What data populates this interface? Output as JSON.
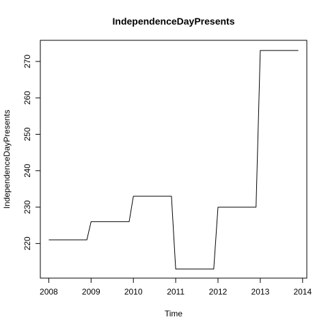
{
  "chart_data": {
    "type": "line",
    "title": "IndependenceDayPresents",
    "xlabel": "Time",
    "ylabel": "IndependenceDayPresents",
    "xlim": [
      2007.8,
      2014.1
    ],
    "ylim": [
      210.5,
      275.8
    ],
    "x_ticks": [
      2008,
      2009,
      2010,
      2011,
      2012,
      2013,
      2014
    ],
    "y_ticks": [
      220,
      230,
      240,
      250,
      260,
      270
    ],
    "grid": false,
    "legend": "none",
    "line_color": "#000000",
    "series": [
      {
        "x": [
          2008.0,
          2008.9,
          2009.0,
          2009.9,
          2010.0,
          2010.9,
          2011.0,
          2011.9,
          2012.0,
          2012.9,
          2013.0,
          2013.9
        ],
        "values": [
          221,
          221,
          226,
          226,
          233,
          233,
          213,
          213,
          230,
          230,
          273,
          273
        ]
      }
    ]
  }
}
